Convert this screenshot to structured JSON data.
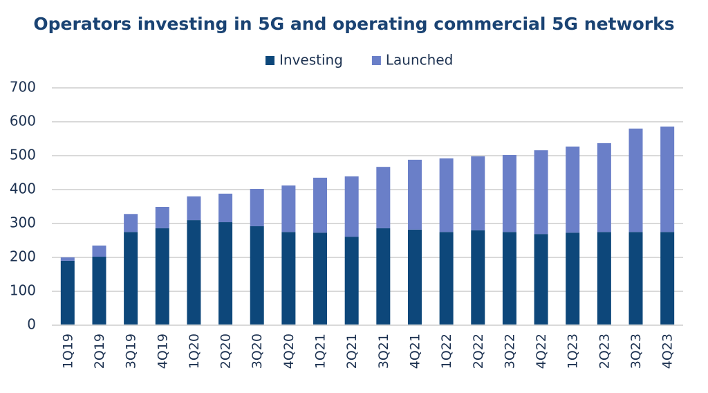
{
  "chart_data": {
    "type": "bar",
    "stacked": true,
    "title": "Operators investing in 5G and operating commercial 5G networks",
    "categories": [
      "1Q19",
      "2Q19",
      "3Q19",
      "4Q19",
      "1Q20",
      "2Q20",
      "3Q20",
      "4Q20",
      "1Q21",
      "2Q21",
      "3Q21",
      "4Q21",
      "1Q22",
      "2Q22",
      "3Q22",
      "4Q22",
      "1Q23",
      "2Q23",
      "3Q23",
      "4Q23"
    ],
    "series": [
      {
        "name": "Investing",
        "color": "#0d477a",
        "values": [
          190,
          202,
          275,
          286,
          310,
          304,
          292,
          275,
          273,
          261,
          286,
          282,
          275,
          280,
          275,
          269,
          273,
          275,
          275,
          275
        ]
      },
      {
        "name": "Launched",
        "color": "#6a7fc8",
        "values": [
          10,
          33,
          53,
          63,
          70,
          84,
          110,
          137,
          162,
          178,
          181,
          206,
          217,
          218,
          227,
          247,
          254,
          262,
          305,
          311
        ]
      }
    ],
    "ylim": [
      0,
      700
    ],
    "yticks": [
      0,
      100,
      200,
      300,
      400,
      500,
      600,
      700
    ],
    "grid": true,
    "legend": "top"
  }
}
